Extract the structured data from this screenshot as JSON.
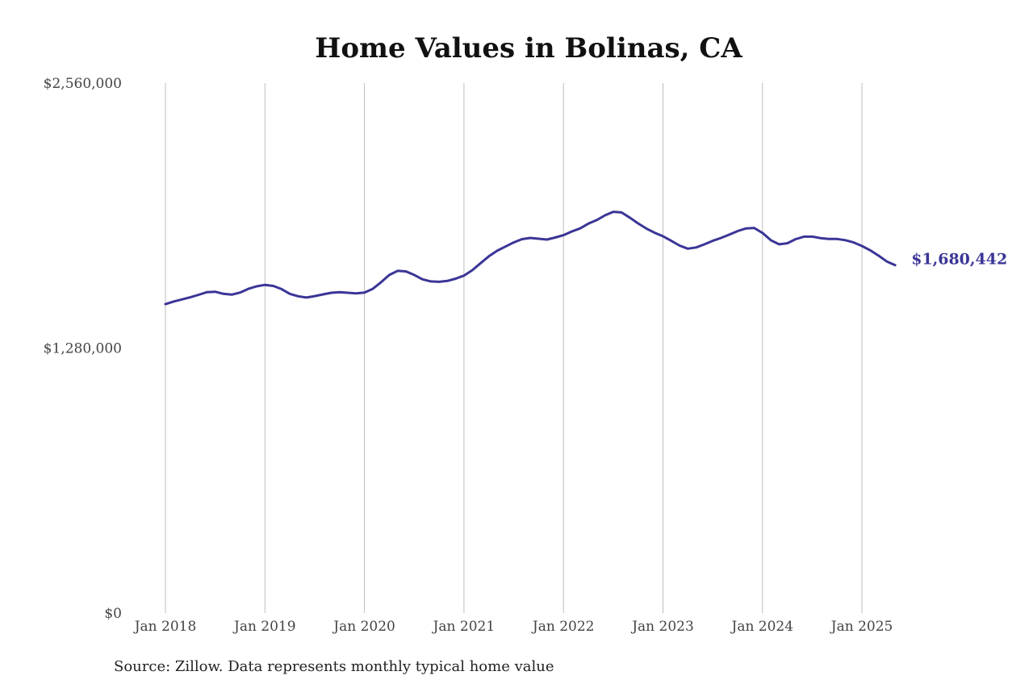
{
  "source_note": "Source: Zillow. Data represents monthly typical home value",
  "colors": {
    "line": "#3a3596",
    "grid": "#bdbdbd"
  },
  "chart_data": {
    "type": "line",
    "title": "Home Values in Bolinas, CA",
    "xlabel": "",
    "ylabel": "",
    "ylim": [
      0,
      2560000
    ],
    "y_ticks": [
      {
        "value": 0,
        "label": "$0"
      },
      {
        "value": 1280000,
        "label": "$1,280,000"
      },
      {
        "value": 2560000,
        "label": "$2,560,000"
      }
    ],
    "x_ticks": [
      "Jan 2018",
      "Jan 2019",
      "Jan 2020",
      "Jan 2021",
      "Jan 2022",
      "Jan 2023",
      "Jan 2024",
      "Jan 2025"
    ],
    "vertical_grid": true,
    "start": "2018-01",
    "end_label": "$1,680,442",
    "series": [
      {
        "values": [
          1492000,
          1505000,
          1515000,
          1525000,
          1537000,
          1550000,
          1552000,
          1542000,
          1538000,
          1548000,
          1566000,
          1578000,
          1585000,
          1580000,
          1565000,
          1542000,
          1530000,
          1524000,
          1531000,
          1539000,
          1547000,
          1550000,
          1547000,
          1544000,
          1548000,
          1566000,
          1598000,
          1633000,
          1653000,
          1650000,
          1633000,
          1612000,
          1602000,
          1600000,
          1604000,
          1615000,
          1630000,
          1656000,
          1690000,
          1723000,
          1750000,
          1770000,
          1790000,
          1806000,
          1812000,
          1808000,
          1804000,
          1814000,
          1825000,
          1843000,
          1858000,
          1881000,
          1898000,
          1921000,
          1938000,
          1935000,
          1910000,
          1882000,
          1857000,
          1837000,
          1820000,
          1798000,
          1775000,
          1760000,
          1766000,
          1781000,
          1798000,
          1812000,
          1828000,
          1845000,
          1858000,
          1860000,
          1836000,
          1801000,
          1781000,
          1786000,
          1806000,
          1818000,
          1818000,
          1811000,
          1807000,
          1807000,
          1801000,
          1790000,
          1773000,
          1752000,
          1726000,
          1698000,
          1680442
        ]
      }
    ]
  }
}
